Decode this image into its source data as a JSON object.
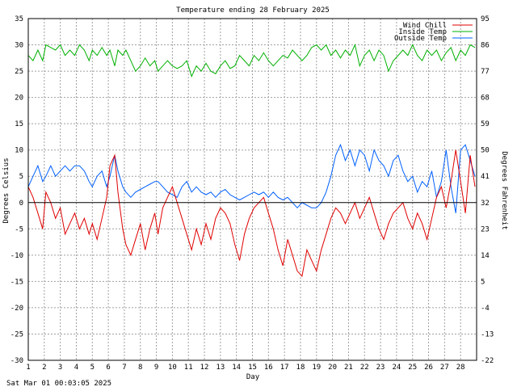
{
  "chart_data": {
    "type": "line",
    "title": "Temperature ending 28 February 2025",
    "xlabel": "Day",
    "ylabel": "Degrees Celsius",
    "y2label": "Degrees Fahrenheit",
    "timestamp": "Sat Mar 01 00:03:05 2025",
    "xlim": [
      1,
      29
    ],
    "ylim": [
      -30,
      35
    ],
    "y2lim": [
      -22,
      95
    ],
    "x_ticks": [
      "1",
      "2",
      "3",
      "4",
      "5",
      "6",
      "7",
      "8",
      "9",
      "10",
      "11",
      "12",
      "13",
      "14",
      "15",
      "16",
      "17",
      "18",
      "19",
      "20",
      "21",
      "22",
      "23",
      "24",
      "25",
      "26",
      "27",
      "28"
    ],
    "y_ticks": [
      "35",
      "30",
      "25",
      "20",
      "15",
      "10",
      "5",
      "0",
      "-5",
      "-10",
      "-15",
      "-20",
      "-25",
      "-30"
    ],
    "y2_ticks": [
      "95",
      "86",
      "77",
      "68",
      "59",
      "50",
      "41",
      "32",
      "23",
      "14",
      "5",
      "-4",
      "-13",
      "-22"
    ],
    "grid": true,
    "legend_position": "top-right",
    "series": [
      {
        "name": "Wind Chill",
        "color": "#e00000",
        "x": [
          1.0,
          1.3,
          1.6,
          1.9,
          2.1,
          2.4,
          2.7,
          3.0,
          3.3,
          3.6,
          3.9,
          4.2,
          4.5,
          4.8,
          5.0,
          5.3,
          5.6,
          5.9,
          6.1,
          6.4,
          6.6,
          6.9,
          7.1,
          7.4,
          7.7,
          8.0,
          8.3,
          8.6,
          8.9,
          9.1,
          9.4,
          9.7,
          10.0,
          10.3,
          10.6,
          10.9,
          11.2,
          11.5,
          11.8,
          12.1,
          12.4,
          12.7,
          13.0,
          13.3,
          13.6,
          13.9,
          14.2,
          14.5,
          14.8,
          15.1,
          15.4,
          15.7,
          16.0,
          16.3,
          16.6,
          16.9,
          17.2,
          17.5,
          17.8,
          18.1,
          18.4,
          18.7,
          19.0,
          19.3,
          19.6,
          19.9,
          20.2,
          20.5,
          20.8,
          21.1,
          21.4,
          21.7,
          22.0,
          22.3,
          22.6,
          22.9,
          23.2,
          23.5,
          23.8,
          24.1,
          24.4,
          24.7,
          25.0,
          25.3,
          25.6,
          25.9,
          26.2,
          26.5,
          26.8,
          27.1,
          27.4,
          27.7,
          28.0,
          28.3,
          28.6,
          28.9
        ],
        "y": [
          3,
          1,
          -2,
          -5,
          2,
          0,
          -3,
          -1,
          -6,
          -4,
          -2,
          -5,
          -3,
          -6,
          -4,
          -7,
          -3,
          1,
          7,
          9,
          2,
          -5,
          -8,
          -10,
          -7,
          -4,
          -9,
          -5,
          -2,
          -6,
          -1,
          1,
          3,
          0,
          -3,
          -6,
          -9,
          -5,
          -8,
          -4,
          -7,
          -3,
          -1,
          -2,
          -4,
          -8,
          -11,
          -6,
          -3,
          -1,
          0,
          1,
          -2,
          -5,
          -9,
          -12,
          -7,
          -10,
          -13,
          -14,
          -9,
          -11,
          -13,
          -9,
          -6,
          -3,
          -1,
          -2,
          -4,
          -2,
          0,
          -3,
          -1,
          1,
          -2,
          -5,
          -7,
          -4,
          -2,
          -1,
          0,
          -3,
          -5,
          -2,
          -4,
          -7,
          -3,
          1,
          3,
          -1,
          4,
          10,
          4,
          -2,
          9,
          3
        ],
        "values_note_removed": true
      },
      {
        "name": "Inside Temp",
        "color": "#00b000",
        "x": [
          1.0,
          1.3,
          1.6,
          1.9,
          2.1,
          2.4,
          2.7,
          3.0,
          3.3,
          3.6,
          3.9,
          4.2,
          4.5,
          4.8,
          5.0,
          5.3,
          5.6,
          5.9,
          6.1,
          6.4,
          6.6,
          6.9,
          7.1,
          7.4,
          7.7,
          8.0,
          8.3,
          8.6,
          8.9,
          9.1,
          9.4,
          9.7,
          10.0,
          10.3,
          10.6,
          10.9,
          11.2,
          11.5,
          11.8,
          12.1,
          12.4,
          12.7,
          13.0,
          13.3,
          13.6,
          13.9,
          14.2,
          14.5,
          14.8,
          15.1,
          15.4,
          15.7,
          16.0,
          16.3,
          16.6,
          16.9,
          17.2,
          17.5,
          17.8,
          18.1,
          18.4,
          18.7,
          19.0,
          19.3,
          19.6,
          19.9,
          20.2,
          20.5,
          20.8,
          21.1,
          21.4,
          21.7,
          22.0,
          22.3,
          22.6,
          22.9,
          23.2,
          23.5,
          23.8,
          24.1,
          24.4,
          24.7,
          25.0,
          25.3,
          25.6,
          25.9,
          26.2,
          26.5,
          26.8,
          27.1,
          27.4,
          27.7,
          28.0,
          28.3,
          28.6,
          28.9
        ],
        "y": [
          28,
          27,
          29,
          27,
          30,
          29.5,
          29,
          30,
          28,
          29,
          28,
          30,
          29,
          27,
          29,
          28,
          29.5,
          28,
          29,
          26,
          29,
          28,
          29,
          27,
          25,
          26,
          27.5,
          26,
          27,
          25,
          26,
          27,
          26,
          25.5,
          26,
          27,
          24,
          26,
          25,
          26.5,
          25,
          24.5,
          26,
          27,
          25.5,
          26,
          28,
          27,
          26,
          28,
          27,
          28.5,
          27,
          26,
          27,
          28,
          27.5,
          29,
          28,
          27,
          28,
          29.5,
          30,
          29,
          30,
          28,
          29,
          27.5,
          29,
          28,
          30,
          26,
          28,
          29,
          27,
          29,
          28,
          25,
          27,
          28,
          29,
          28,
          30,
          28,
          27,
          29,
          28,
          29,
          27,
          28.5,
          29.5,
          27,
          29,
          28,
          30,
          29.5
        ],
        "values_note_removed": true
      },
      {
        "name": "Outside Temp",
        "color": "#0060ff",
        "x": [
          1.0,
          1.3,
          1.6,
          1.9,
          2.1,
          2.4,
          2.7,
          3.0,
          3.3,
          3.6,
          3.9,
          4.2,
          4.5,
          4.8,
          5.0,
          5.3,
          5.6,
          5.9,
          6.1,
          6.4,
          6.6,
          6.9,
          7.1,
          7.4,
          7.7,
          8.0,
          8.3,
          8.6,
          8.9,
          9.1,
          9.4,
          9.7,
          10.0,
          10.3,
          10.6,
          10.9,
          11.2,
          11.5,
          11.8,
          12.1,
          12.4,
          12.7,
          13.0,
          13.3,
          13.6,
          13.9,
          14.2,
          14.5,
          14.8,
          15.1,
          15.4,
          15.7,
          16.0,
          16.3,
          16.6,
          16.9,
          17.2,
          17.5,
          17.8,
          18.1,
          18.4,
          18.7,
          19.0,
          19.3,
          19.6,
          19.9,
          20.2,
          20.5,
          20.8,
          21.1,
          21.4,
          21.7,
          22.0,
          22.3,
          22.6,
          22.9,
          23.2,
          23.5,
          23.8,
          24.1,
          24.4,
          24.7,
          25.0,
          25.3,
          25.6,
          25.9,
          26.2,
          26.5,
          26.8,
          27.1,
          27.4,
          27.7,
          28.0,
          28.3,
          28.6,
          28.9
        ],
        "y": [
          3,
          5,
          7,
          4,
          5,
          7,
          5,
          6,
          7,
          6,
          7,
          7,
          6,
          4,
          3,
          5,
          6,
          3,
          5,
          9,
          6,
          3,
          2,
          1,
          2,
          2.5,
          3,
          3.5,
          4,
          4,
          3,
          2,
          1.5,
          1,
          3,
          4,
          2,
          3,
          2,
          1.5,
          2,
          1,
          2,
          2.5,
          1.5,
          1,
          0.5,
          1,
          1.5,
          2,
          1.5,
          2,
          1,
          2,
          1,
          0.5,
          1,
          0,
          -1,
          0,
          -0.5,
          -1,
          -1,
          0,
          2,
          5,
          9,
          11,
          8,
          10,
          7,
          10,
          9,
          6,
          10,
          8,
          7,
          5,
          8,
          9,
          6,
          4,
          5,
          2,
          4,
          3,
          6,
          1,
          4,
          10,
          3,
          -2,
          10,
          11,
          8,
          5
        ],
        "values_note_removed": true
      }
    ]
  }
}
